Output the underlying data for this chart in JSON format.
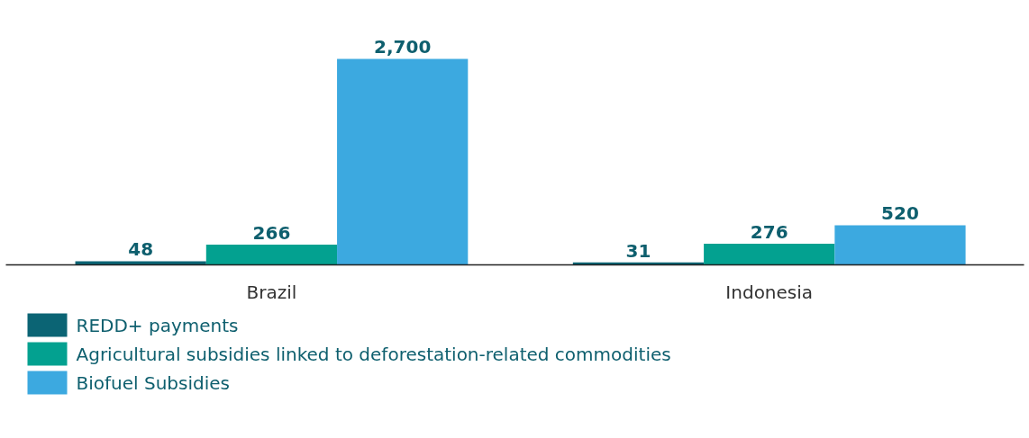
{
  "chart_data": {
    "type": "bar",
    "categories": [
      "Brazil",
      "Indonesia"
    ],
    "series": [
      {
        "name": "REDD+ payments",
        "color": "#0b6474",
        "values": [
          48,
          31
        ],
        "value_labels": [
          "48",
          "31"
        ]
      },
      {
        "name": "Agricultural subsidies linked to deforestation-related commodities",
        "color": "#03a190",
        "values": [
          266,
          276
        ],
        "value_labels": [
          "266",
          "276"
        ]
      },
      {
        "name": "Biofuel Subsidies",
        "color": "#3ca9e0",
        "values": [
          2700,
          520
        ],
        "value_labels": [
          "2,700",
          "520"
        ]
      }
    ],
    "legend": "bottom left",
    "tick_labels": "x"
  }
}
